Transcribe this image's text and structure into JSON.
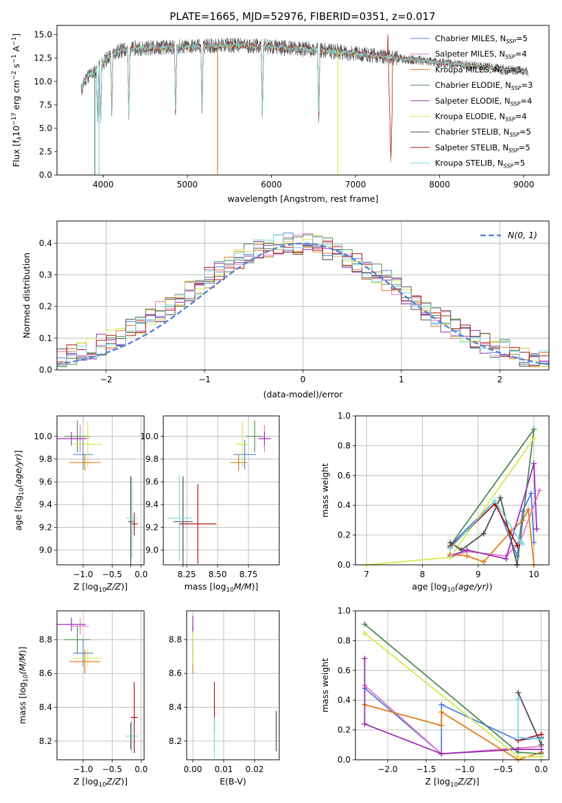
{
  "figure_title": "PLATE=1665, MJD=52976, FIBERID=0351, z=0.017",
  "series": [
    {
      "name": "Chabrier MILES, N<sub>SSP</sub>=5",
      "legend": "Chabrier MILES, N",
      "sub": "SSP",
      "tail": "=5",
      "color": "#4f7fdc"
    },
    {
      "name": "Salpeter MILES",
      "legend": "Salpeter MILES, N",
      "sub": "SSP",
      "tail": "=4",
      "color": "#e377c2"
    },
    {
      "name": "Kroupa MILES",
      "legend": "Kroupa MILES, N",
      "sub": "SSP",
      "tail": "=5",
      "color": "#e07b1a"
    },
    {
      "name": "Chabrier ELODIE",
      "legend": "Chabrier ELODIE, N",
      "sub": "SSP",
      "tail": "=3",
      "color": "#4a8a50"
    },
    {
      "name": "Salpeter ELODIE",
      "legend": "Salpeter ELODIE, N",
      "sub": "SSP",
      "tail": "=4",
      "color": "#9b2fb5"
    },
    {
      "name": "Kroupa ELODIE",
      "legend": "Kroupa ELODIE, N",
      "sub": "SSP",
      "tail": "=4",
      "color": "#d4e84b"
    },
    {
      "name": "Chabrier STELIB",
      "legend": "Chabrier STELIB, N",
      "sub": "SSP",
      "tail": "=5",
      "color": "#4d4d4d"
    },
    {
      "name": "Salpeter STELIB",
      "legend": "Salpeter STELIB, N",
      "sub": "SSP",
      "tail": "=5",
      "color": "#b01010"
    },
    {
      "name": "Kroupa STELIB",
      "legend": "Kroupa STELIB, N",
      "sub": "SSP",
      "tail": "=5",
      "color": "#79d8e0"
    }
  ],
  "chart_data": [
    {
      "type": "line",
      "id": "spectrum",
      "xlabel": "wavelength [Angstrom, rest frame]",
      "ylabel": "Flux [f",
      "ylabel_tail": "10",
      "ylabel_exp": "−17",
      "ylabel_end": " erg cm",
      "xlim": [
        3450,
        9300
      ],
      "ylim": [
        0,
        16
      ],
      "xticks": [
        4000,
        5000,
        6000,
        7000,
        8000,
        9000
      ],
      "yticks": [
        0.0,
        2.5,
        5.0,
        7.5,
        10.0,
        12.5,
        15.0
      ],
      "continuum": [
        [
          3740,
          9.0
        ],
        [
          3800,
          10.5
        ],
        [
          3900,
          11.0
        ],
        [
          4000,
          12.0
        ],
        [
          4100,
          13.0
        ],
        [
          4300,
          13.5
        ],
        [
          4500,
          13.6
        ],
        [
          5000,
          13.7
        ],
        [
          5500,
          13.9
        ],
        [
          6000,
          13.7
        ],
        [
          6500,
          13.4
        ],
        [
          7000,
          13.0
        ],
        [
          7500,
          12.5
        ],
        [
          8000,
          12.0
        ],
        [
          8500,
          11.6
        ],
        [
          9050,
          11.0
        ]
      ],
      "absorption_lines": [
        [
          3934,
          3.0
        ],
        [
          3969,
          4.5
        ],
        [
          4102,
          8.5
        ],
        [
          4304,
          10.5
        ],
        [
          4861,
          11.2
        ],
        [
          5175,
          11.8
        ],
        [
          5892,
          11.5
        ],
        [
          6563,
          12.0
        ]
      ],
      "data_dropouts": [
        [
          3900,
          0.0
        ],
        [
          5360,
          0.0
        ],
        [
          6790,
          0.0
        ],
        [
          7420,
          1.0
        ]
      ]
    },
    {
      "type": "bar",
      "id": "residual-histogram",
      "xlabel": "(data-model)/error",
      "ylabel": "Normed distribution",
      "xlim": [
        -2.5,
        2.5
      ],
      "ylim": [
        0,
        0.47
      ],
      "xticks": [
        -2,
        -1,
        0,
        1,
        2
      ],
      "yticks": [
        0.0,
        0.1,
        0.2,
        0.3,
        0.4
      ],
      "bin_width": 0.1,
      "reference_label": "N(0, 1)",
      "reference_color": "#5b84d6"
    },
    {
      "type": "scatter",
      "id": "age-vs-Z",
      "xlabel": "Z [log",
      "ylabel": "age  [log",
      "xlim": [
        -1.45,
        0.05
      ],
      "ylim": [
        8.87,
        10.18
      ],
      "xticks": [
        -1.0,
        -0.5,
        0.0
      ],
      "yticks": [
        9.0,
        9.2,
        9.4,
        9.6,
        9.8,
        10.0
      ],
      "points": [
        {
          "x": -1.0,
          "y": 9.84,
          "dx": 0.17,
          "dy": 0.13
        },
        {
          "x": -1.05,
          "y": 9.98,
          "dx": 0.15,
          "dy": 0.12
        },
        {
          "x": -0.97,
          "y": 9.77,
          "dx": 0.27,
          "dy": 0.07
        },
        {
          "x": -1.1,
          "y": 10.0,
          "dx": 0.22,
          "dy": 0.14
        },
        {
          "x": -1.2,
          "y": 9.98,
          "dx": 0.25,
          "dy": 0.06
        },
        {
          "x": -0.92,
          "y": 9.93,
          "dx": 0.25,
          "dy": 0.2
        },
        {
          "x": -0.18,
          "y": 9.25,
          "dx": 0.05,
          "dy": 0.4
        },
        {
          "x": -0.12,
          "y": 9.23,
          "dx": 0.06,
          "dy": 0.1
        },
        {
          "x": -0.16,
          "y": 9.28,
          "dx": 0.1,
          "dy": 0.35
        }
      ]
    },
    {
      "type": "scatter",
      "id": "age-vs-mass",
      "xlabel": "mass [log",
      "ylabel": "",
      "xlim": [
        8.06,
        9.0
      ],
      "ylim": [
        8.87,
        10.18
      ],
      "xticks": [
        8.25,
        8.5,
        8.75
      ],
      "yticks": [
        9.0,
        9.2,
        9.4,
        9.6,
        9.8,
        10.0
      ],
      "points": [
        {
          "x": 8.72,
          "y": 9.84,
          "dx": 0.09,
          "dy": 0.13
        },
        {
          "x": 8.88,
          "y": 9.98,
          "dx": 0.04,
          "dy": 0.12
        },
        {
          "x": 8.67,
          "y": 9.77,
          "dx": 0.07,
          "dy": 0.07
        },
        {
          "x": 8.8,
          "y": 10.0,
          "dx": 0.07,
          "dy": 0.14
        },
        {
          "x": 8.88,
          "y": 9.98,
          "dx": 0.05,
          "dy": 0.06
        },
        {
          "x": 8.7,
          "y": 9.93,
          "dx": 0.05,
          "dy": 0.2
        },
        {
          "x": 8.22,
          "y": 9.25,
          "dx": 0.08,
          "dy": 0.4
        },
        {
          "x": 8.34,
          "y": 9.23,
          "dx": 0.15,
          "dy": 0.35
        },
        {
          "x": 8.19,
          "y": 9.28,
          "dx": 0.1,
          "dy": 0.38
        }
      ]
    },
    {
      "type": "line",
      "id": "massweight-vs-age",
      "xlabel": "age  [log",
      "ylabel": "mass weight",
      "xlim": [
        6.8,
        10.27
      ],
      "ylim": [
        0,
        1
      ],
      "xticks": [
        7,
        8,
        9,
        10
      ],
      "yticks": [
        0.0,
        0.2,
        0.4,
        0.6,
        0.8,
        1.0
      ],
      "lines": [
        [
          [
            8.5,
            0.13
          ],
          [
            9.3,
            0.43
          ],
          [
            9.7,
            0.06
          ],
          [
            9.8,
            0.36
          ],
          [
            9.95,
            0.48
          ],
          [
            10.0,
            0.15
          ]
        ],
        [
          [
            8.5,
            0.05
          ],
          [
            8.8,
            0.09
          ],
          [
            9.5,
            0.06
          ],
          [
            9.75,
            0.15
          ],
          [
            10.1,
            0.5
          ]
        ],
        [
          [
            8.5,
            0.07
          ],
          [
            8.8,
            0.06
          ],
          [
            9.1,
            0.02
          ],
          [
            9.6,
            0.23
          ],
          [
            9.8,
            0.3
          ],
          [
            9.9,
            0.37
          ],
          [
            10.0,
            0.0
          ]
        ],
        [
          [
            8.5,
            0.13
          ],
          [
            10.0,
            0.91
          ],
          [
            9.7,
            0.0
          ]
        ],
        [
          [
            8.5,
            0.06
          ],
          [
            8.8,
            0.1
          ],
          [
            9.5,
            0.04
          ],
          [
            10.0,
            0.68
          ],
          [
            10.05,
            0.24
          ]
        ],
        [
          [
            7.0,
            0.0
          ],
          [
            8.5,
            0.05
          ],
          [
            10.0,
            0.85
          ]
        ],
        [
          [
            8.5,
            0.15
          ],
          [
            8.7,
            0.1
          ],
          [
            9.1,
            0.21
          ],
          [
            9.4,
            0.45
          ],
          [
            9.7,
            0.0
          ]
        ],
        [
          [
            8.5,
            0.12
          ],
          [
            9.3,
            0.41
          ],
          [
            9.7,
            0.13
          ]
        ],
        [
          [
            8.5,
            0.11
          ],
          [
            9.3,
            0.43
          ],
          [
            9.75,
            0.16
          ],
          [
            9.8,
            0.14
          ]
        ]
      ]
    },
    {
      "type": "scatter",
      "id": "mass-vs-Z",
      "xlabel": "Z [log",
      "ylabel": "mass [log",
      "xlim": [
        -1.45,
        0.05
      ],
      "ylim": [
        8.09,
        8.97
      ],
      "xticks": [
        -1.0,
        -0.5,
        0.0
      ],
      "yticks": [
        8.2,
        8.4,
        8.6,
        8.8
      ],
      "points": [
        {
          "x": -1.0,
          "y": 8.72,
          "dx": 0.17,
          "dy": 0.08
        },
        {
          "x": -1.05,
          "y": 8.88,
          "dx": 0.15,
          "dy": 0.05
        },
        {
          "x": -0.97,
          "y": 8.67,
          "dx": 0.27,
          "dy": 0.07
        },
        {
          "x": -1.1,
          "y": 8.8,
          "dx": 0.22,
          "dy": 0.08
        },
        {
          "x": -1.2,
          "y": 8.89,
          "dx": 0.25,
          "dy": 0.04
        },
        {
          "x": -0.92,
          "y": 8.69,
          "dx": 0.25,
          "dy": 0.05
        },
        {
          "x": -0.18,
          "y": 8.23,
          "dx": 0.05,
          "dy": 0.08
        },
        {
          "x": -0.12,
          "y": 8.34,
          "dx": 0.06,
          "dy": 0.21
        },
        {
          "x": -0.16,
          "y": 8.23,
          "dx": 0.1,
          "dy": 0.1
        }
      ]
    },
    {
      "type": "scatter",
      "id": "mass-vs-ebv",
      "xlabel": "E(B-V)",
      "ylabel": "",
      "xlim": [
        -0.002,
        0.028
      ],
      "ylim": [
        8.09,
        8.97
      ],
      "xticks": [
        0.0,
        0.01,
        0.02
      ],
      "yticks": [
        8.2,
        8.4,
        8.6,
        8.8
      ],
      "points": [
        {
          "x": 0.0,
          "y": 8.72,
          "dx": 0,
          "dy": 0.08
        },
        {
          "x": 0.0,
          "y": 8.88,
          "dx": 0,
          "dy": 0.05
        },
        {
          "x": 0.0,
          "y": 8.67,
          "dx": 0,
          "dy": 0.07
        },
        {
          "x": 0.0,
          "y": 8.8,
          "dx": 0,
          "dy": 0.08
        },
        {
          "x": 0.0,
          "y": 8.89,
          "dx": 0,
          "dy": 0.05
        },
        {
          "x": 0.0,
          "y": 8.75,
          "dx": 0,
          "dy": 0.1
        },
        {
          "x": 0.027,
          "y": 8.26,
          "dx": 0,
          "dy": 0.12
        },
        {
          "x": 0.007,
          "y": 8.4,
          "dx": 0,
          "dy": 0.15
        },
        {
          "x": 0.007,
          "y": 8.22,
          "dx": 0,
          "dy": 0.12
        }
      ]
    },
    {
      "type": "line",
      "id": "massweight-vs-Z",
      "xlabel": "Z [log",
      "ylabel": "mass weight",
      "xlim": [
        -2.42,
        0.1
      ],
      "ylim": [
        0,
        1
      ],
      "xticks": [
        -2.0,
        -1.5,
        -1.0,
        -0.5,
        0.0
      ],
      "yticks": [
        0.0,
        0.2,
        0.4,
        0.6,
        0.8,
        1.0
      ],
      "lines": [
        [
          [
            -2.3,
            0.48
          ],
          [
            -1.3,
            0.04
          ],
          [
            -1.3,
            0.37
          ],
          [
            -0.3,
            0.13
          ],
          [
            0.0,
            0.15
          ]
        ],
        [
          [
            -2.3,
            0.5
          ],
          [
            -1.3,
            0.04
          ],
          [
            0.0,
            0.09
          ]
        ],
        [
          [
            -2.3,
            0.37
          ],
          [
            -1.3,
            0.23
          ],
          [
            -1.3,
            0.32
          ],
          [
            -0.3,
            0.0
          ],
          [
            0.0,
            0.05
          ]
        ],
        [
          [
            -2.3,
            0.91
          ],
          [
            -0.3,
            0.05
          ],
          [
            0.0,
            0.04
          ]
        ],
        [
          [
            -2.3,
            0.68
          ],
          [
            -2.3,
            0.24
          ],
          [
            -1.3,
            0.04
          ],
          [
            -0.3,
            0.07
          ],
          [
            0.0,
            0.07
          ]
        ],
        [
          [
            -2.3,
            0.85
          ],
          [
            -0.3,
            0.02
          ],
          [
            0.0,
            0.02
          ]
        ],
        [
          [
            -0.3,
            0.45
          ],
          [
            0.0,
            0.1
          ],
          [
            0.0,
            0.15
          ]
        ],
        [
          [
            -0.3,
            0.13
          ],
          [
            0.0,
            0.17
          ]
        ],
        [
          [
            -0.3,
            0.41
          ],
          [
            -0.3,
            0.15
          ],
          [
            0.0,
            0.14
          ]
        ]
      ]
    }
  ]
}
